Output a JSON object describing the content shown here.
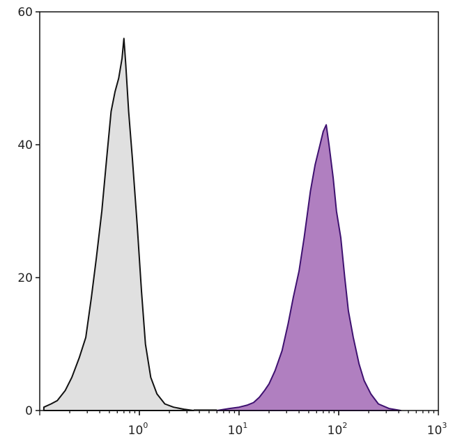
{
  "chart_data": {
    "type": "area",
    "title": "",
    "xlabel": "",
    "ylabel": "",
    "x_scale": "log",
    "xlim": [
      0.1,
      1000
    ],
    "ylim": [
      0,
      60
    ],
    "grid": false,
    "y_ticks": [
      {
        "value": 0,
        "label": "0"
      },
      {
        "value": 20,
        "label": "20"
      },
      {
        "value": 40,
        "label": "40"
      },
      {
        "value": 60,
        "label": "60"
      }
    ],
    "x_ticks": [
      {
        "value": 1,
        "base": "10",
        "exp": "0"
      },
      {
        "value": 10,
        "base": "10",
        "exp": "1"
      },
      {
        "value": 100,
        "base": "10",
        "exp": "2"
      },
      {
        "value": 1000,
        "base": "10",
        "exp": "3"
      }
    ],
    "series": [
      {
        "fill": "#e0e0e0",
        "stroke": "#111111",
        "x": [
          0.11,
          0.13,
          0.15,
          0.18,
          0.21,
          0.25,
          0.29,
          0.33,
          0.37,
          0.42,
          0.47,
          0.52,
          0.57,
          0.62,
          0.67,
          0.7,
          0.73,
          0.78,
          0.85,
          0.95,
          1.05,
          1.15,
          1.3,
          1.5,
          1.8,
          2.2,
          2.8,
          3.5
        ],
        "y": [
          0.5,
          1,
          1.5,
          3,
          5,
          8,
          11,
          17,
          23,
          30,
          38,
          45,
          48,
          50,
          53,
          56,
          52,
          45,
          38,
          28,
          18,
          10,
          5,
          2.5,
          1,
          0.5,
          0.2,
          0
        ]
      },
      {
        "fill": "#b07fc0",
        "stroke": "#3e1170",
        "x": [
          6,
          8,
          10,
          12,
          14,
          16,
          18,
          20,
          23,
          27,
          31,
          35,
          40,
          45,
          52,
          58,
          65,
          70,
          75,
          80,
          88,
          95,
          105,
          115,
          125,
          140,
          160,
          180,
          210,
          250,
          320,
          420
        ],
        "y": [
          0,
          0.3,
          0.5,
          0.8,
          1.2,
          2,
          3,
          4,
          6,
          9,
          13,
          17,
          21,
          26,
          33,
          37,
          40,
          42,
          43,
          40,
          35,
          30,
          26,
          20,
          15,
          11,
          7,
          4.5,
          2.5,
          1,
          0.3,
          0
        ]
      }
    ]
  }
}
